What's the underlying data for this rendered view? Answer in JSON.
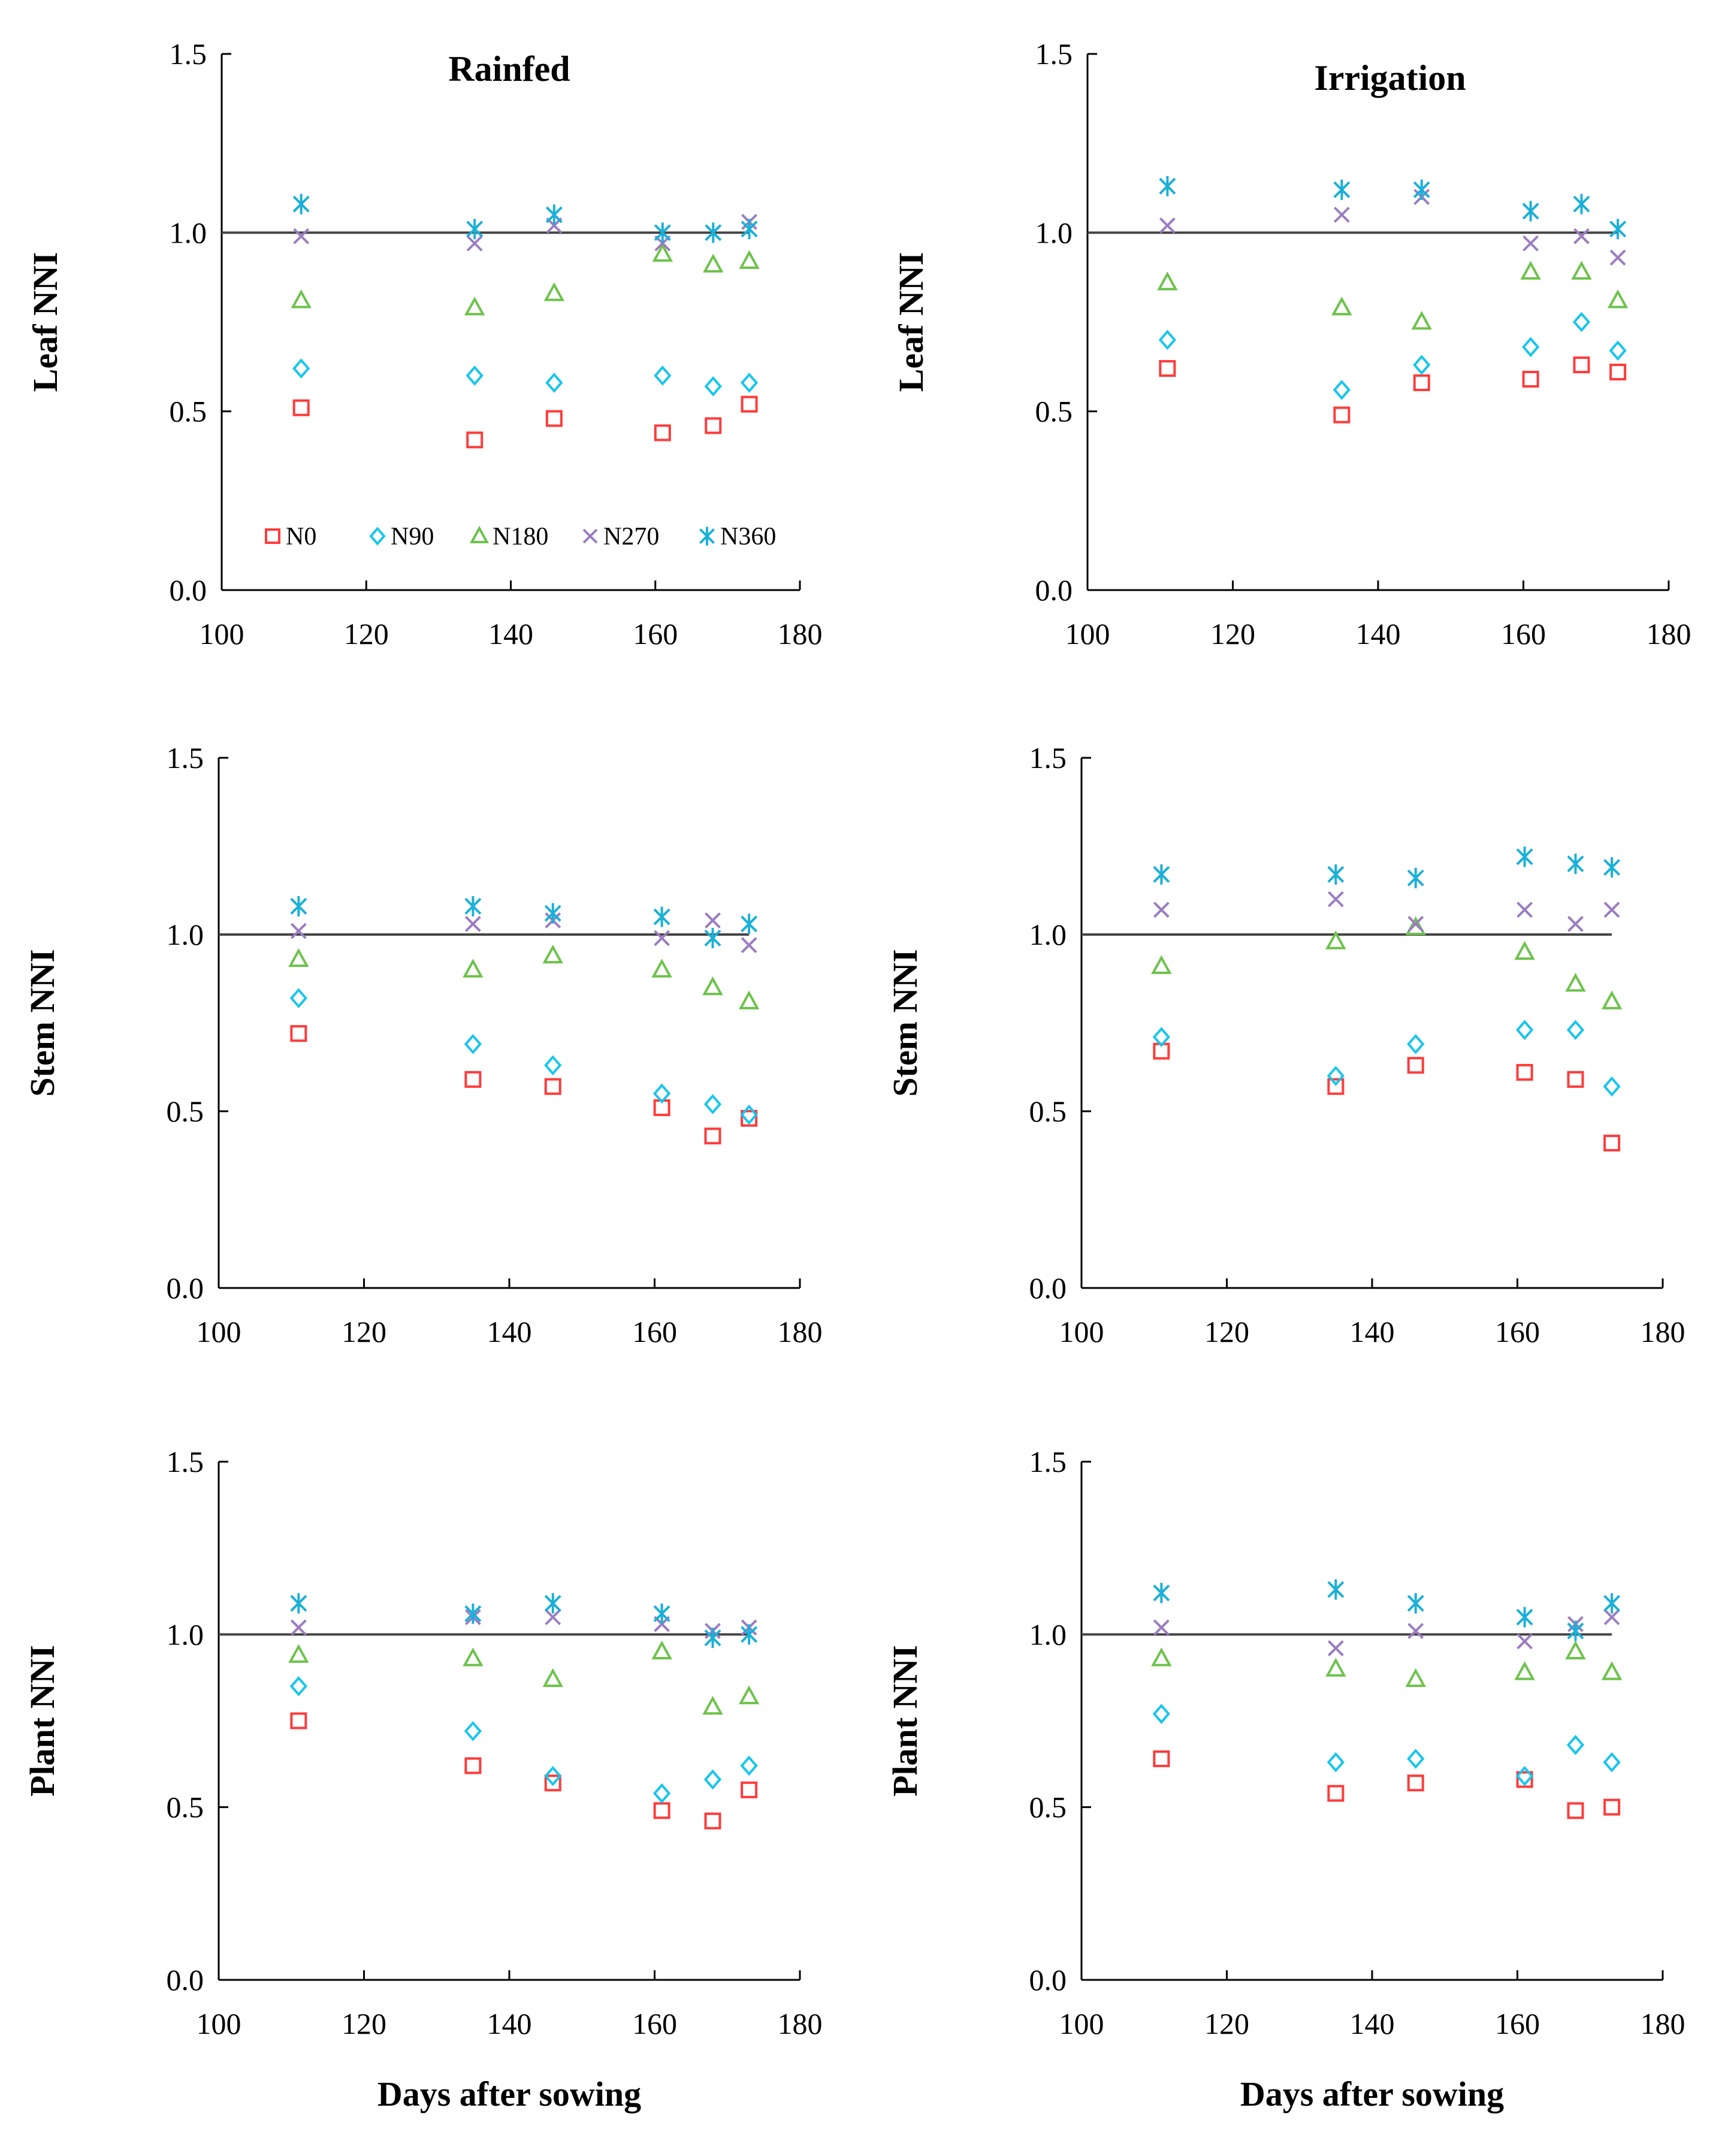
{
  "colors": {
    "N0": "#ff3b3b",
    "N90": "#16c6ee",
    "N180": "#6cc24a",
    "N270": "#9b7cc0",
    "N360": "#1ab0d8",
    "axis": "#000000",
    "refline": "#444444"
  },
  "chart_data": [
    {
      "type": "scatter",
      "id": "rainfed-leaf",
      "title": "Rainfed",
      "xlabel": "",
      "ylabel": "Leaf NNI",
      "xlim": [
        100,
        180
      ],
      "ylim": [
        0,
        1.5
      ],
      "xticks": [
        "100",
        "120",
        "140",
        "160",
        "180"
      ],
      "yticks": [
        "0.0",
        "0.5",
        "1.0",
        "1.5"
      ],
      "refline": 1.0,
      "legend": "bottom-inside",
      "x": [
        111,
        135,
        146,
        161,
        168,
        173
      ],
      "series": [
        {
          "name": "N0",
          "values": [
            0.51,
            0.42,
            0.48,
            0.44,
            0.46,
            0.52
          ]
        },
        {
          "name": "N90",
          "values": [
            0.62,
            0.6,
            0.58,
            0.6,
            0.57,
            0.58
          ]
        },
        {
          "name": "N180",
          "values": [
            0.81,
            0.79,
            0.83,
            0.94,
            0.91,
            0.92
          ]
        },
        {
          "name": "N270",
          "values": [
            0.99,
            0.97,
            1.02,
            0.97,
            1.0,
            1.03
          ]
        },
        {
          "name": "N360",
          "values": [
            1.08,
            1.01,
            1.05,
            1.0,
            1.0,
            1.01
          ]
        }
      ]
    },
    {
      "type": "scatter",
      "id": "irrigation-leaf",
      "title": "Irrigation",
      "xlabel": "",
      "ylabel": "Leaf NNI",
      "xlim": [
        100,
        180
      ],
      "ylim": [
        0,
        1.5
      ],
      "xticks": [
        "100",
        "120",
        "140",
        "160",
        "180"
      ],
      "yticks": [
        "0.0",
        "0.5",
        "1.0",
        "1.5"
      ],
      "refline": 1.0,
      "x": [
        111,
        135,
        146,
        161,
        168,
        173
      ],
      "series": [
        {
          "name": "N0",
          "values": [
            0.62,
            0.49,
            0.58,
            0.59,
            0.63,
            0.61
          ]
        },
        {
          "name": "N90",
          "values": [
            0.7,
            0.56,
            0.63,
            0.68,
            0.75,
            0.67
          ]
        },
        {
          "name": "N180",
          "values": [
            0.86,
            0.79,
            0.75,
            0.89,
            0.89,
            0.81
          ]
        },
        {
          "name": "N270",
          "values": [
            1.02,
            1.05,
            1.1,
            0.97,
            0.99,
            0.93
          ]
        },
        {
          "name": "N360",
          "values": [
            1.13,
            1.12,
            1.12,
            1.06,
            1.08,
            1.01
          ]
        }
      ]
    },
    {
      "type": "scatter",
      "id": "rainfed-stem",
      "title": "",
      "xlabel": "",
      "ylabel": "Stem NNI",
      "xlim": [
        100,
        180
      ],
      "ylim": [
        0,
        1.5
      ],
      "xticks": [
        "100",
        "120",
        "140",
        "160",
        "180"
      ],
      "yticks": [
        "0.0",
        "0.5",
        "1.0",
        "1.5"
      ],
      "refline": 1.0,
      "x": [
        111,
        135,
        146,
        161,
        168,
        173
      ],
      "series": [
        {
          "name": "N0",
          "values": [
            0.72,
            0.59,
            0.57,
            0.51,
            0.43,
            0.48
          ]
        },
        {
          "name": "N90",
          "values": [
            0.82,
            0.69,
            0.63,
            0.55,
            0.52,
            0.49
          ]
        },
        {
          "name": "N180",
          "values": [
            0.93,
            0.9,
            0.94,
            0.9,
            0.85,
            0.81
          ]
        },
        {
          "name": "N270",
          "values": [
            1.01,
            1.03,
            1.04,
            0.99,
            1.04,
            0.97
          ]
        },
        {
          "name": "N360",
          "values": [
            1.08,
            1.08,
            1.06,
            1.05,
            0.99,
            1.03
          ]
        }
      ]
    },
    {
      "type": "scatter",
      "id": "irrigation-stem",
      "title": "",
      "xlabel": "",
      "ylabel": "Stem NNI",
      "xlim": [
        100,
        180
      ],
      "ylim": [
        0,
        1.5
      ],
      "xticks": [
        "100",
        "120",
        "140",
        "160",
        "180"
      ],
      "yticks": [
        "0.0",
        "0.5",
        "1.0",
        "1.5"
      ],
      "refline": 1.0,
      "x": [
        111,
        135,
        146,
        161,
        168,
        173
      ],
      "series": [
        {
          "name": "N0",
          "values": [
            0.67,
            0.57,
            0.63,
            0.61,
            0.59,
            0.41
          ]
        },
        {
          "name": "N90",
          "values": [
            0.71,
            0.6,
            0.69,
            0.73,
            0.73,
            0.57
          ]
        },
        {
          "name": "N180",
          "values": [
            0.91,
            0.98,
            1.02,
            0.95,
            0.86,
            0.81
          ]
        },
        {
          "name": "N270",
          "values": [
            1.07,
            1.1,
            1.03,
            1.07,
            1.03,
            1.07
          ]
        },
        {
          "name": "N360",
          "values": [
            1.17,
            1.17,
            1.16,
            1.22,
            1.2,
            1.19
          ]
        }
      ]
    },
    {
      "type": "scatter",
      "id": "rainfed-plant",
      "title": "",
      "xlabel": "Days after sowing",
      "ylabel": "Plant NNI",
      "xlim": [
        100,
        180
      ],
      "ylim": [
        0,
        1.5
      ],
      "xticks": [
        "100",
        "120",
        "140",
        "160",
        "180"
      ],
      "yticks": [
        "0.0",
        "0.5",
        "1.0",
        "1.5"
      ],
      "refline": 1.0,
      "x": [
        111,
        135,
        146,
        161,
        168,
        173
      ],
      "series": [
        {
          "name": "N0",
          "values": [
            0.75,
            0.62,
            0.57,
            0.49,
            0.46,
            0.55
          ]
        },
        {
          "name": "N90",
          "values": [
            0.85,
            0.72,
            0.59,
            0.54,
            0.58,
            0.62
          ]
        },
        {
          "name": "N180",
          "values": [
            0.94,
            0.93,
            0.87,
            0.95,
            0.79,
            0.82
          ]
        },
        {
          "name": "N270",
          "values": [
            1.02,
            1.05,
            1.05,
            1.03,
            1.01,
            1.02
          ]
        },
        {
          "name": "N360",
          "values": [
            1.09,
            1.06,
            1.09,
            1.06,
            0.99,
            1.0
          ]
        }
      ]
    },
    {
      "type": "scatter",
      "id": "irrigation-plant",
      "title": "",
      "xlabel": "Days after sowing",
      "ylabel": "Plant NNI",
      "xlim": [
        100,
        180
      ],
      "ylim": [
        0,
        1.5
      ],
      "xticks": [
        "100",
        "120",
        "140",
        "160",
        "180"
      ],
      "yticks": [
        "0.0",
        "0.5",
        "1.0",
        "1.5"
      ],
      "refline": 1.0,
      "x": [
        111,
        135,
        146,
        161,
        168,
        173
      ],
      "series": [
        {
          "name": "N0",
          "values": [
            0.64,
            0.54,
            0.57,
            0.58,
            0.49,
            0.5
          ]
        },
        {
          "name": "N90",
          "values": [
            0.77,
            0.63,
            0.64,
            0.59,
            0.68,
            0.63
          ]
        },
        {
          "name": "N180",
          "values": [
            0.93,
            0.9,
            0.87,
            0.89,
            0.95,
            0.89
          ]
        },
        {
          "name": "N270",
          "values": [
            1.02,
            0.96,
            1.01,
            0.98,
            1.03,
            1.05
          ]
        },
        {
          "name": "N360",
          "values": [
            1.12,
            1.13,
            1.09,
            1.05,
            1.01,
            1.09
          ]
        }
      ]
    }
  ],
  "legend": {
    "entries": [
      {
        "name": "N0",
        "label": "N0",
        "marker": "square"
      },
      {
        "name": "N90",
        "label": "N90",
        "marker": "diamond"
      },
      {
        "name": "N180",
        "label": "N180",
        "marker": "triangle"
      },
      {
        "name": "N270",
        "label": "N270",
        "marker": "cross"
      },
      {
        "name": "N360",
        "label": "N360",
        "marker": "star"
      }
    ]
  }
}
